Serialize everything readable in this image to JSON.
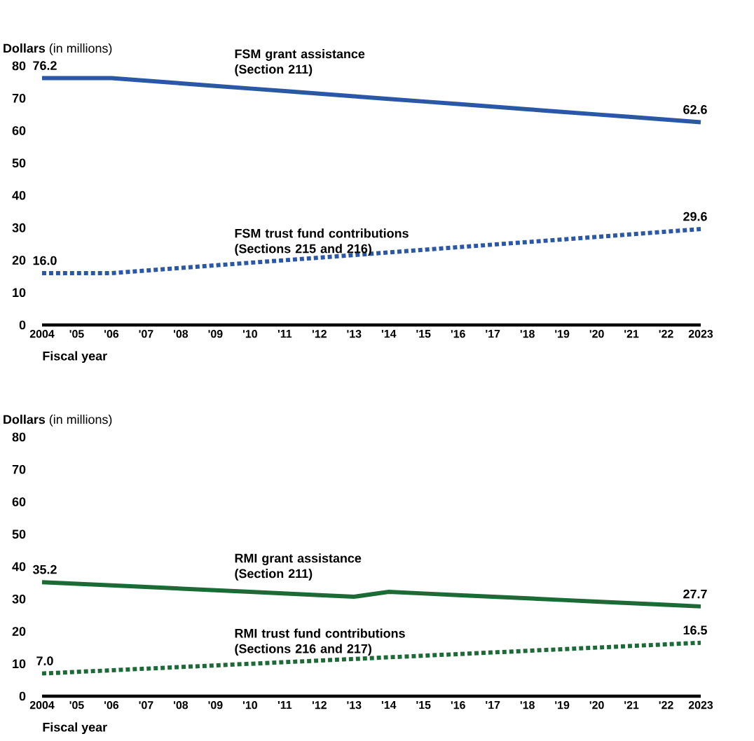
{
  "chart_data": [
    {
      "type": "line",
      "ylabel": "**Dollars** (in millions)",
      "xlabel": "Fiscal year",
      "categories": [
        "2004",
        "'05",
        "'06",
        "'07",
        "'08",
        "'09",
        "'10",
        "'11",
        "'12",
        "'13",
        "'14",
        "'15",
        "'16",
        "'17",
        "'18",
        "'19",
        "'20",
        "'21",
        "'22",
        "2023"
      ],
      "ylim": [
        0,
        80
      ],
      "yticks": [
        0,
        10,
        20,
        30,
        40,
        50,
        60,
        70,
        80
      ],
      "grid": false,
      "series": [
        {
          "name": "FSM grant assistance (Section 211)",
          "color": "#2b58a6",
          "line_style": "solid",
          "values": [
            76.2,
            76.2,
            76.2,
            75.4,
            74.6,
            73.8,
            73.0,
            72.2,
            71.4,
            70.6,
            69.8,
            69.0,
            68.2,
            67.4,
            66.6,
            65.8,
            65.0,
            64.2,
            63.4,
            62.6
          ],
          "value_labels": [
            "76.2",
            null,
            null,
            null,
            null,
            null,
            null,
            null,
            null,
            null,
            null,
            null,
            null,
            null,
            null,
            null,
            null,
            null,
            null,
            "62.6"
          ]
        },
        {
          "name": "FSM trust fund contributions (Sections 215 and 216)",
          "color": "#2b58a6",
          "line_style": "dotted",
          "values": [
            16.0,
            16.0,
            16.0,
            16.8,
            17.6,
            18.4,
            19.2,
            20.0,
            20.8,
            21.6,
            22.4,
            23.2,
            24.0,
            24.8,
            25.6,
            26.4,
            27.2,
            28.0,
            28.8,
            29.6
          ],
          "value_labels": [
            "16.0",
            null,
            null,
            null,
            null,
            null,
            null,
            null,
            null,
            null,
            null,
            null,
            null,
            null,
            null,
            null,
            null,
            null,
            null,
            "29.6"
          ]
        }
      ]
    },
    {
      "type": "line",
      "ylabel": "**Dollars** (in millions)",
      "xlabel": "Fiscal year",
      "categories": [
        "2004",
        "'05",
        "'06",
        "'07",
        "'08",
        "'09",
        "'10",
        "'11",
        "'12",
        "'13",
        "'14",
        "'15",
        "'16",
        "'17",
        "'18",
        "'19",
        "'20",
        "'21",
        "'22",
        "2023"
      ],
      "ylim": [
        0,
        80
      ],
      "yticks": [
        0,
        10,
        20,
        30,
        40,
        50,
        60,
        70,
        80
      ],
      "grid": false,
      "series": [
        {
          "name": "RMI grant assistance (Section 211)",
          "color": "#1c6b36",
          "line_style": "solid",
          "values": [
            35.2,
            34.7,
            34.2,
            33.7,
            33.2,
            32.7,
            32.2,
            31.7,
            31.2,
            30.7,
            32.2,
            31.7,
            31.2,
            30.7,
            30.2,
            29.7,
            29.2,
            28.7,
            28.2,
            27.7
          ],
          "value_labels": [
            "35.2",
            null,
            null,
            null,
            null,
            null,
            null,
            null,
            null,
            null,
            null,
            null,
            null,
            null,
            null,
            null,
            null,
            null,
            null,
            "27.7"
          ]
        },
        {
          "name": "RMI trust fund contributions (Sections 216 and 217)",
          "color": "#1c6b36",
          "line_style": "dotted",
          "values": [
            7.0,
            7.5,
            8.0,
            8.5,
            9.0,
            9.5,
            10.0,
            10.5,
            11.0,
            11.5,
            12.0,
            12.5,
            13.0,
            13.5,
            14.0,
            14.5,
            15.0,
            15.5,
            16.0,
            16.5
          ],
          "value_labels": [
            "7.0",
            null,
            null,
            null,
            null,
            null,
            null,
            null,
            null,
            null,
            null,
            null,
            null,
            null,
            null,
            null,
            null,
            null,
            null,
            "16.5"
          ]
        }
      ]
    }
  ]
}
